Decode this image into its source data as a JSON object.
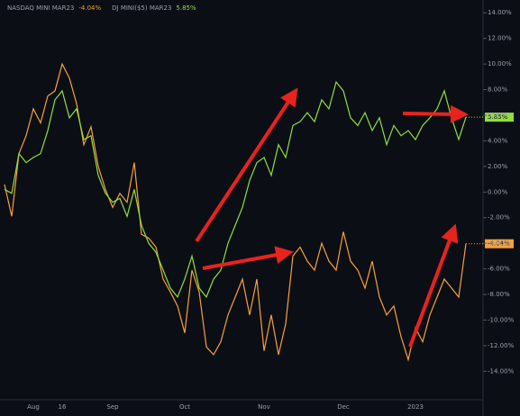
{
  "chart_data": {
    "type": "line",
    "categories": [
      null,
      null,
      null,
      null,
      "Aug",
      null,
      null,
      null,
      "16",
      null,
      null,
      null,
      null,
      null,
      null,
      "Sep",
      null,
      null,
      null,
      null,
      null,
      null,
      null,
      null,
      null,
      "Oct",
      null,
      null,
      null,
      null,
      null,
      null,
      null,
      null,
      null,
      null,
      "Nov",
      null,
      null,
      null,
      null,
      null,
      null,
      null,
      null,
      null,
      null,
      "Dec",
      null,
      null,
      null,
      null,
      null,
      null,
      null,
      null,
      null,
      "2023",
      null,
      null,
      null,
      null,
      null,
      null,
      null
    ],
    "series": [
      {
        "name": "NASDAQ MINI MAR23",
        "color": "#f7a13a",
        "last_value_label": "-4.04%",
        "values": [
          0.6,
          -1.9,
          3,
          4.4,
          6.5,
          5.4,
          7.5,
          7.9,
          10,
          8.9,
          6.9,
          3.7,
          5.1,
          2,
          0.2,
          -1.2,
          -0.1,
          -0.8,
          2.3,
          -3.3,
          -3.6,
          -4.3,
          -6.8,
          -7.8,
          -8.9,
          -11,
          -6.1,
          -7.8,
          -12.1,
          -12.7,
          -11.7,
          -9.6,
          -8.2,
          -6.8,
          -9.6,
          -6.8,
          -12.4,
          -9.6,
          -12.7,
          -10.3,
          -5,
          -4.3,
          -5.4,
          -6.1,
          -4,
          -5.4,
          -6.1,
          -3.1,
          -5.4,
          -6.1,
          -7.5,
          -5.4,
          -8.2,
          -9.6,
          -8.9,
          -11.3,
          -13.1,
          -10.6,
          -11.7,
          -9.6,
          -8.2,
          -6.8,
          -7.5,
          -8.2,
          -4.04
        ]
      },
      {
        "name": "DJ MINI($5) MAR23",
        "color": "#8fe03c",
        "last_value_label": "5.85%",
        "values": [
          0.2,
          -0.1,
          3,
          2.3,
          2.7,
          3,
          4.8,
          7.2,
          7.9,
          5.8,
          6.5,
          4.1,
          4.4,
          1.3,
          -0.1,
          -0.8,
          -0.5,
          -1.9,
          0.2,
          -2.6,
          -4,
          -4.7,
          -6.1,
          -7.5,
          -8.2,
          -6.8,
          -5,
          -7.5,
          -8.2,
          -6.8,
          -6.1,
          -4,
          -2.6,
          -1.2,
          0.9,
          2.3,
          2.7,
          1.3,
          3.7,
          2.7,
          5.2,
          5.5,
          6.2,
          5.5,
          7.2,
          6.5,
          8.6,
          7.9,
          5.8,
          5.2,
          6.2,
          4.8,
          5.8,
          3.7,
          5.2,
          4.4,
          4.8,
          4.1,
          5.2,
          5.8,
          6.5,
          7.9,
          5.8,
          4.1,
          5.85
        ]
      }
    ],
    "ylim": [
      -17,
      15
    ],
    "yticks": [
      {
        "value": 14,
        "label": "14.00%"
      },
      {
        "value": 12,
        "label": "12.00%"
      },
      {
        "value": 10,
        "label": "10.00%"
      },
      {
        "value": 8,
        "label": "8.00%"
      },
      {
        "value": 6,
        "label": "6.00%"
      },
      {
        "value": 4,
        "label": "4.00%"
      },
      {
        "value": 2,
        "label": "2.00%"
      },
      {
        "value": 0,
        "label": "0.00%"
      },
      {
        "value": -2,
        "label": "-2.00%"
      },
      {
        "value": -4,
        "label": "-4.00%"
      },
      {
        "value": -6,
        "label": "-6.00%"
      },
      {
        "value": -8,
        "label": "-8.00%"
      },
      {
        "value": -10,
        "label": "-10.00%"
      },
      {
        "value": -12,
        "label": "-12.00%"
      },
      {
        "value": -14,
        "label": "-14.00%"
      }
    ],
    "grid": false
  }
}
